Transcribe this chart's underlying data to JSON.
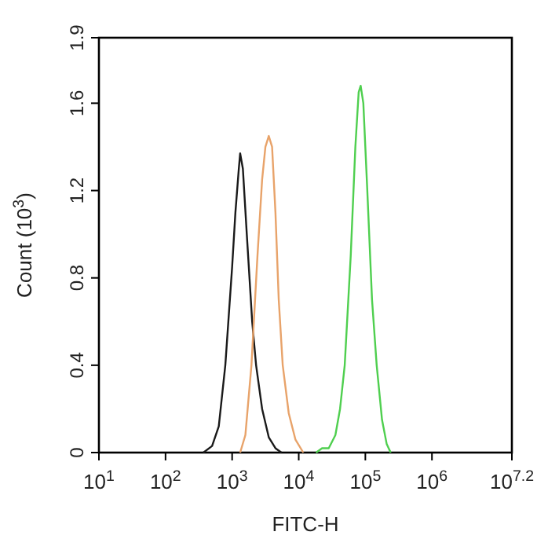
{
  "chart_data": {
    "type": "line",
    "xlabel": "FITC-H",
    "ylabel": "Count (10$^{3}$)",
    "log": "x",
    "grid": false,
    "marker": "none",
    "line_style": "solid",
    "xlim": [
      10,
      15848932
    ],
    "xticks": [
      {
        "value": 10,
        "label": "10$^{1}$"
      },
      {
        "value": 100,
        "label": "10$^{2}$"
      },
      {
        "value": 1000,
        "label": "10$^{3}$"
      },
      {
        "value": 10000,
        "label": "10$^{4}$"
      },
      {
        "value": 100000,
        "label": "10$^{5}$"
      },
      {
        "value": 1000000,
        "label": "10$^{6}$"
      },
      {
        "value": 15848932,
        "label": "10$^{7.2}$"
      }
    ],
    "ylim": [
      0,
      1.9
    ],
    "yticks": [
      0,
      0.4,
      0.8,
      1.2,
      1.6,
      1.9
    ],
    "series": [
      {
        "color": "#1a1a1a",
        "x": [
          370,
          500,
          630,
          790,
          1000,
          1120,
          1260,
          1320,
          1450,
          1660,
          2000,
          2290,
          2820,
          3550,
          4470,
          5500
        ],
        "values": [
          0,
          0.03,
          0.12,
          0.4,
          0.85,
          1.1,
          1.3,
          1.37,
          1.3,
          1.0,
          0.6,
          0.4,
          0.2,
          0.07,
          0.02,
          0
        ]
      },
      {
        "color": "#e8a36a",
        "x": [
          1320,
          1580,
          1950,
          2400,
          2820,
          3160,
          3550,
          3980,
          4470,
          5010,
          5750,
          7080,
          8910,
          11700
        ],
        "values": [
          0,
          0.08,
          0.4,
          0.9,
          1.25,
          1.4,
          1.45,
          1.4,
          1.1,
          0.7,
          0.4,
          0.18,
          0.06,
          0
        ]
      },
      {
        "color": "#4fcf4f",
        "x": [
          18200,
          22400,
          28200,
          35500,
          41700,
          49000,
          60300,
          70800,
          79400,
          85100,
          93300,
          107000,
          126000,
          148000,
          178000,
          209000,
          240000
        ],
        "values": [
          0,
          0.02,
          0.02,
          0.08,
          0.2,
          0.4,
          0.9,
          1.4,
          1.65,
          1.68,
          1.6,
          1.2,
          0.7,
          0.4,
          0.15,
          0.04,
          0
        ]
      }
    ]
  }
}
